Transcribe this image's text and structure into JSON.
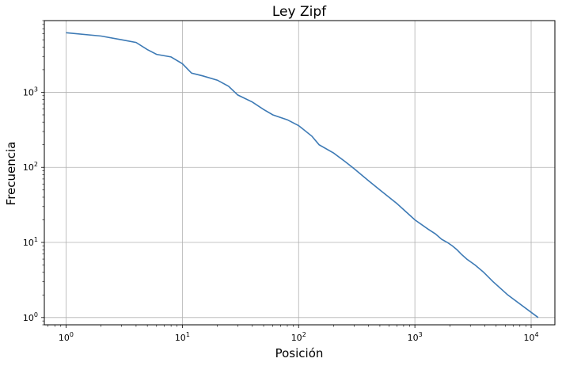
{
  "chart_data": {
    "type": "line",
    "title": "Ley Zipf",
    "xlabel": "Posición",
    "ylabel": "Frecuencia",
    "x_scale": "log",
    "y_scale": "log",
    "xlim": [
      0.65,
      16000
    ],
    "ylim": [
      0.8,
      9000
    ],
    "grid": true,
    "line_color": "#3d7ab5",
    "x_ticks": [
      {
        "base": "10",
        "exp": "0",
        "value": 1
      },
      {
        "base": "10",
        "exp": "1",
        "value": 10
      },
      {
        "base": "10",
        "exp": "2",
        "value": 100
      },
      {
        "base": "10",
        "exp": "3",
        "value": 1000
      },
      {
        "base": "10",
        "exp": "4",
        "value": 10000
      }
    ],
    "y_ticks": [
      {
        "base": "10",
        "exp": "0",
        "value": 1
      },
      {
        "base": "10",
        "exp": "1",
        "value": 10
      },
      {
        "base": "10",
        "exp": "2",
        "value": 100
      },
      {
        "base": "10",
        "exp": "3",
        "value": 1000
      }
    ],
    "series": [
      {
        "x": [
          1,
          2,
          3,
          4,
          5,
          6,
          8,
          10,
          12,
          15,
          20,
          25,
          30,
          40,
          50,
          60,
          80,
          100,
          130,
          150,
          200,
          250,
          300,
          400,
          500,
          700,
          1000,
          1300,
          1500,
          1700,
          1900,
          2100,
          2300,
          2500,
          2800,
          3300,
          3900,
          4700,
          6300,
          11500
        ],
        "y": [
          6200,
          5600,
          5000,
          4600,
          3700,
          3200,
          2950,
          2400,
          1800,
          1650,
          1450,
          1200,
          920,
          740,
          590,
          500,
          430,
          360,
          260,
          200,
          155,
          120,
          96,
          66,
          50,
          33,
          20,
          15,
          13,
          11,
          10,
          9,
          8,
          7,
          6,
          5,
          4,
          3,
          2,
          1
        ]
      }
    ]
  }
}
